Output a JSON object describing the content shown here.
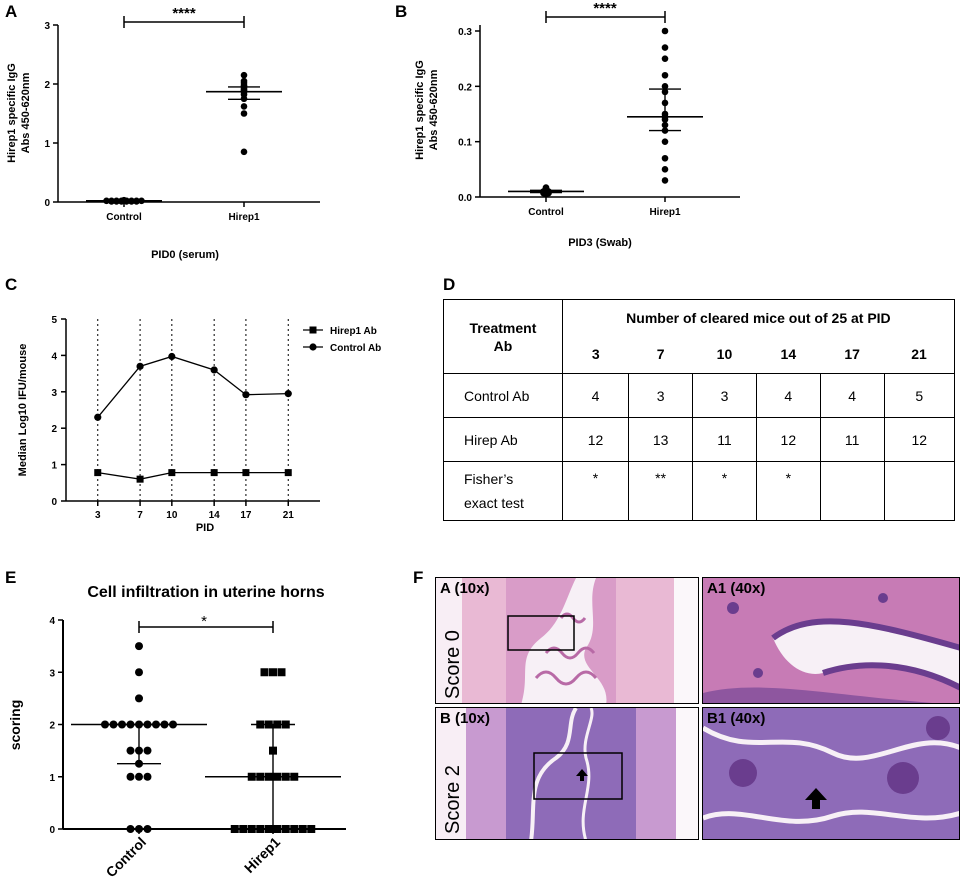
{
  "panels": {
    "A": {
      "letter": "A",
      "ylabel_line1": "Hirep1 specific IgG",
      "ylabel_line2": "Abs 450-620nm",
      "xlabel": "PID0 (serum)",
      "significance": "****"
    },
    "B": {
      "letter": "B",
      "ylabel_line1": "Hirep1 specific IgG",
      "ylabel_line2": "Abs 450-620nm",
      "xlabel": "PID3 (Swab)",
      "significance": "****"
    },
    "C": {
      "letter": "C",
      "ylabel": "Median Log10 IFU/mouse",
      "xlabel": "PID"
    },
    "D": {
      "letter": "D"
    },
    "E": {
      "letter": "E",
      "title": "Cell infiltration in uterine horns",
      "ylabel": "scoring",
      "significance": "*"
    },
    "F": {
      "letter": "F"
    }
  },
  "chart_data": [
    {
      "type": "scatter",
      "panel": "A",
      "categories": [
        "Control",
        "Hirep1"
      ],
      "ylim": [
        0,
        3
      ],
      "yticks": [
        "0",
        "1",
        "2",
        "3"
      ],
      "series": [
        {
          "values": [
            0.02,
            0.02,
            0.01,
            0.01,
            0.02,
            0.01,
            0.02,
            0.03,
            0.01,
            0.02,
            0.01,
            0.02,
            0.02,
            0.01,
            0.02
          ],
          "median": 0.02,
          "error": [
            0.01,
            0.03
          ]
        },
        {
          "values": [
            2.15,
            2.05,
            2.02,
            1.98,
            1.96,
            1.95,
            1.92,
            1.9,
            1.88,
            1.86,
            1.82,
            1.75,
            1.62,
            1.5,
            0.85
          ],
          "median": 1.87,
          "error": [
            1.74,
            1.95
          ]
        }
      ]
    },
    {
      "type": "scatter",
      "panel": "B",
      "categories": [
        "Control",
        "Hirep1"
      ],
      "ylim": [
        0,
        0.3
      ],
      "yticks": [
        "0.0",
        "0.1",
        "0.2",
        "0.3"
      ],
      "series": [
        {
          "values": [
            0.017,
            0.015,
            0.013,
            0.012,
            0.011,
            0.01,
            0.01,
            0.009,
            0.009,
            0.008,
            0.008,
            0.007,
            0.007,
            0.006,
            0.005
          ],
          "median": 0.01,
          "error": [
            0.008,
            0.012
          ]
        },
        {
          "values": [
            0.3,
            0.27,
            0.25,
            0.22,
            0.2,
            0.19,
            0.17,
            0.15,
            0.145,
            0.14,
            0.13,
            0.12,
            0.1,
            0.07,
            0.05,
            0.03
          ],
          "median": 0.145,
          "error": [
            0.12,
            0.195
          ]
        }
      ]
    },
    {
      "type": "line",
      "panel": "C",
      "x": [
        3,
        7,
        10,
        14,
        17,
        21
      ],
      "xticks": [
        "3",
        "7",
        "10",
        "14",
        "17",
        "21"
      ],
      "ylim": [
        0,
        5
      ],
      "yticks": [
        "0",
        "1",
        "2",
        "3",
        "4",
        "5"
      ],
      "series": [
        {
          "name": "Hirep1 Ab",
          "marker": "square",
          "values": [
            0.78,
            0.6,
            0.78,
            0.78,
            0.78,
            0.78
          ]
        },
        {
          "name": "Control Ab",
          "marker": "circle",
          "values": [
            2.3,
            3.7,
            3.97,
            3.6,
            2.92,
            2.95
          ]
        }
      ],
      "legend": "top-right",
      "grid": "vertical dotted"
    },
    {
      "type": "table",
      "panel": "D",
      "header": {
        "treatment_line1": "Treatment",
        "treatment_line2": "Ab",
        "span": "Number of cleared mice out of 25 at PID"
      },
      "columns": [
        "3",
        "7",
        "10",
        "14",
        "17",
        "21"
      ],
      "rows": [
        {
          "label": "Control Ab",
          "values": [
            "4",
            "3",
            "3",
            "4",
            "4",
            "5"
          ]
        },
        {
          "label": "Hirep Ab",
          "values": [
            "12",
            "13",
            "11",
            "12",
            "11",
            "12"
          ]
        },
        {
          "label_line1": "Fisher’s",
          "label_line2": "exact test",
          "values": [
            "*",
            "**",
            "*",
            "*",
            "",
            ""
          ]
        }
      ]
    },
    {
      "type": "scatter",
      "panel": "E",
      "categories": [
        "Control",
        "Hirep1"
      ],
      "ylim": [
        0,
        4
      ],
      "yticks": [
        "0",
        "1",
        "2",
        "3",
        "4"
      ],
      "series": [
        {
          "marker": "circle",
          "values": [
            3.5,
            3,
            2.5,
            2,
            2,
            2,
            2,
            2,
            2,
            2,
            2,
            2,
            1.5,
            1.5,
            1.5,
            1.25,
            1,
            1,
            1,
            0,
            0,
            0
          ],
          "median": 2,
          "error": [
            1.25,
            2
          ]
        },
        {
          "marker": "square",
          "values": [
            3,
            3,
            3,
            2,
            2,
            2,
            2,
            1.5,
            1,
            1,
            1,
            1,
            1,
            1,
            0,
            0,
            0,
            0,
            0,
            0,
            0,
            0,
            0,
            0
          ],
          "median": 1,
          "error": [
            0,
            2
          ]
        }
      ]
    }
  ],
  "histology": {
    "tiles": [
      {
        "id": "A",
        "label": "A (10x)"
      },
      {
        "id": "A1",
        "label": "A1 (40x)"
      },
      {
        "id": "B",
        "label": "B (10x)"
      },
      {
        "id": "B1",
        "label": "B1 (40x)"
      }
    ],
    "scores": [
      "Score 0",
      "Score 2"
    ],
    "colors": {
      "stain_light": "#e9b9d4",
      "stain_mid": "#c77bb5",
      "stain_dark": "#6a3d8e",
      "lumen": "#f7f0f6"
    }
  }
}
